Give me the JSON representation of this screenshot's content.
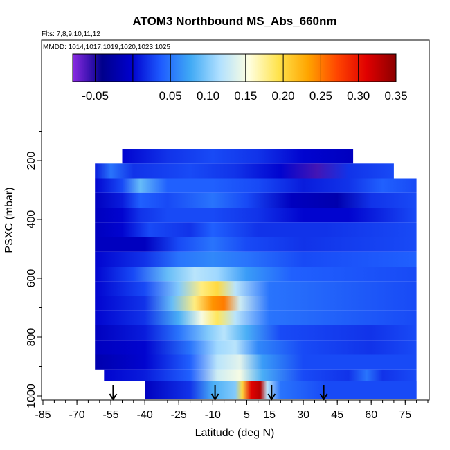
{
  "chart_data": {
    "type": "heatmap",
    "title": "ATOM3 Northbound MS_Abs_660nm",
    "flights_note": "Flts: 7,8,9,10,11,12",
    "mmdd_note": "MMDD: 1014,1017,1019,1020,1023,1025",
    "xlabel": "Latitude (deg N)",
    "ylabel": "PSXC (mbar)",
    "xlim": [
      -85,
      85
    ],
    "ylim": [
      1010,
      60
    ],
    "y_reversed": true,
    "x_ticks": [
      "-85",
      "-70",
      "-55",
      "-40",
      "-25",
      "-10",
      "5",
      "15",
      "30",
      "45",
      "60",
      "75"
    ],
    "y_ticks": [
      "200",
      "400",
      "600",
      "800",
      "1000"
    ],
    "colorbar": {
      "range": [
        -0.08,
        0.35
      ],
      "tick_labels": [
        "-0.05",
        "0.05",
        "0.10",
        "0.15",
        "0.20",
        "0.25",
        "0.30",
        "0.35"
      ],
      "tick_values": [
        -0.05,
        0.05,
        0.1,
        0.15,
        0.2,
        0.25,
        0.3,
        0.35
      ],
      "divider_values": [
        -0.08,
        -0.05,
        0.0,
        0.05,
        0.1,
        0.15,
        0.2,
        0.25,
        0.3,
        0.35
      ],
      "colors": [
        "#8a2be2",
        "#00008b",
        "#0000cd",
        "#1e5bff",
        "#3fa9f5",
        "#b0e0ff",
        "#ffffe0",
        "#ffe34d",
        "#ffa500",
        "#ff4500",
        "#e00000",
        "#8b0000"
      ]
    },
    "profile_arrows_lat": [
      -54,
      -9,
      16,
      39
    ],
    "layers": [
      {
        "p_top": 160,
        "p_bot": 210,
        "lat_min": -50,
        "lat_max": 52,
        "pts": [
          [
            -50,
            0.0
          ],
          [
            -30,
            0.02
          ],
          [
            -10,
            0.03
          ],
          [
            10,
            0.02
          ],
          [
            30,
            0.0
          ],
          [
            52,
            -0.01
          ]
        ]
      },
      {
        "p_top": 210,
        "p_bot": 260,
        "lat_min": -62,
        "lat_max": 70,
        "pts": [
          [
            -62,
            0.01
          ],
          [
            -55,
            0.05
          ],
          [
            -45,
            0.02
          ],
          [
            -20,
            0.03
          ],
          [
            0,
            0.02
          ],
          [
            20,
            0.0
          ],
          [
            36,
            -0.06
          ],
          [
            50,
            0.02
          ],
          [
            70,
            0.03
          ]
        ]
      },
      {
        "p_top": 260,
        "p_bot": 310,
        "lat_min": -62,
        "lat_max": 80,
        "pts": [
          [
            -62,
            0.0
          ],
          [
            -50,
            0.03
          ],
          [
            -42,
            0.09
          ],
          [
            -30,
            0.04
          ],
          [
            -10,
            0.04
          ],
          [
            10,
            0.03
          ],
          [
            30,
            0.01
          ],
          [
            50,
            0.02
          ],
          [
            65,
            0.04
          ],
          [
            80,
            0.03
          ]
        ]
      },
      {
        "p_top": 310,
        "p_bot": 360,
        "lat_min": -62,
        "lat_max": 80,
        "pts": [
          [
            -62,
            -0.01
          ],
          [
            -50,
            0.01
          ],
          [
            -42,
            0.04
          ],
          [
            -30,
            0.03
          ],
          [
            -10,
            0.05
          ],
          [
            5,
            0.03
          ],
          [
            25,
            -0.01
          ],
          [
            45,
            -0.02
          ],
          [
            60,
            0.02
          ],
          [
            80,
            0.03
          ]
        ]
      },
      {
        "p_top": 360,
        "p_bot": 410,
        "lat_min": -62,
        "lat_max": 80,
        "pts": [
          [
            -62,
            -0.01
          ],
          [
            -50,
            0.0
          ],
          [
            -42,
            0.02
          ],
          [
            -30,
            0.03
          ],
          [
            -10,
            0.03
          ],
          [
            10,
            0.02
          ],
          [
            30,
            0.0
          ],
          [
            50,
            0.0
          ],
          [
            70,
            0.02
          ],
          [
            80,
            0.03
          ]
        ]
      },
      {
        "p_top": 410,
        "p_bot": 460,
        "lat_min": -62,
        "lat_max": 80,
        "pts": [
          [
            -62,
            -0.01
          ],
          [
            -50,
            0.0
          ],
          [
            -38,
            0.03
          ],
          [
            -20,
            0.02
          ],
          [
            -10,
            0.04
          ],
          [
            10,
            0.02
          ],
          [
            40,
            0.02
          ],
          [
            80,
            0.03
          ]
        ]
      },
      {
        "p_top": 460,
        "p_bot": 510,
        "lat_min": -62,
        "lat_max": 80,
        "pts": [
          [
            -62,
            -0.01
          ],
          [
            -40,
            -0.01
          ],
          [
            -25,
            0.03
          ],
          [
            -10,
            0.05
          ],
          [
            5,
            0.03
          ],
          [
            30,
            0.02
          ],
          [
            80,
            0.03
          ]
        ]
      },
      {
        "p_top": 510,
        "p_bot": 560,
        "lat_min": -62,
        "lat_max": 80,
        "pts": [
          [
            -62,
            0.0
          ],
          [
            -40,
            0.02
          ],
          [
            -25,
            0.05
          ],
          [
            -10,
            0.06
          ],
          [
            5,
            0.05
          ],
          [
            30,
            0.03
          ],
          [
            80,
            0.04
          ]
        ]
      },
      {
        "p_top": 560,
        "p_bot": 610,
        "lat_min": -62,
        "lat_max": 80,
        "pts": [
          [
            -62,
            0.0
          ],
          [
            -45,
            0.03
          ],
          [
            -30,
            0.09
          ],
          [
            -18,
            0.12
          ],
          [
            -8,
            0.11
          ],
          [
            5,
            0.07
          ],
          [
            25,
            0.04
          ],
          [
            80,
            0.03
          ]
        ]
      },
      {
        "p_top": 610,
        "p_bot": 660,
        "lat_min": -62,
        "lat_max": 80,
        "pts": [
          [
            -62,
            0.0
          ],
          [
            -40,
            0.03
          ],
          [
            -25,
            0.1
          ],
          [
            -15,
            0.18
          ],
          [
            -8,
            0.2
          ],
          [
            0,
            0.12
          ],
          [
            15,
            0.05
          ],
          [
            80,
            0.03
          ]
        ]
      },
      {
        "p_top": 660,
        "p_bot": 710,
        "lat_min": -62,
        "lat_max": 80,
        "pts": [
          [
            -62,
            0.0
          ],
          [
            -40,
            0.02
          ],
          [
            -28,
            0.09
          ],
          [
            -18,
            0.18
          ],
          [
            -10,
            0.24
          ],
          [
            -5,
            0.25
          ],
          [
            2,
            0.13
          ],
          [
            15,
            0.05
          ],
          [
            80,
            0.03
          ]
        ]
      },
      {
        "p_top": 710,
        "p_bot": 760,
        "lat_min": -62,
        "lat_max": 80,
        "pts": [
          [
            -62,
            0.0
          ],
          [
            -40,
            0.02
          ],
          [
            -25,
            0.08
          ],
          [
            -15,
            0.15
          ],
          [
            -8,
            0.19
          ],
          [
            0,
            0.12
          ],
          [
            15,
            0.05
          ],
          [
            80,
            0.03
          ]
        ]
      },
      {
        "p_top": 760,
        "p_bot": 810,
        "lat_min": -62,
        "lat_max": 80,
        "pts": [
          [
            -62,
            -0.01
          ],
          [
            -40,
            0.01
          ],
          [
            -25,
            0.05
          ],
          [
            -12,
            0.1
          ],
          [
            -5,
            0.12
          ],
          [
            5,
            0.08
          ],
          [
            20,
            0.03
          ],
          [
            60,
            0.02
          ],
          [
            80,
            0.03
          ]
        ]
      },
      {
        "p_top": 810,
        "p_bot": 860,
        "lat_min": -62,
        "lat_max": 80,
        "pts": [
          [
            -62,
            -0.01
          ],
          [
            -40,
            0.0
          ],
          [
            -20,
            0.05
          ],
          [
            -8,
            0.11
          ],
          [
            0,
            0.12
          ],
          [
            10,
            0.06
          ],
          [
            30,
            0.03
          ],
          [
            60,
            0.02
          ],
          [
            80,
            0.03
          ]
        ]
      },
      {
        "p_top": 860,
        "p_bot": 910,
        "lat_min": -62,
        "lat_max": 80,
        "pts": [
          [
            -62,
            -0.02
          ],
          [
            -40,
            0.0
          ],
          [
            -20,
            0.04
          ],
          [
            -8,
            0.12
          ],
          [
            2,
            0.14
          ],
          [
            12,
            0.07
          ],
          [
            30,
            0.03
          ],
          [
            80,
            0.03
          ]
        ]
      },
      {
        "p_top": 910,
        "p_bot": 950,
        "lat_min": -58,
        "lat_max": 80,
        "pts": [
          [
            -58,
            0.0
          ],
          [
            -40,
            0.01
          ],
          [
            -20,
            0.04
          ],
          [
            -8,
            0.13
          ],
          [
            2,
            0.15
          ],
          [
            12,
            0.08
          ],
          [
            30,
            0.03
          ],
          [
            50,
            0.02
          ],
          [
            58,
            0.05
          ],
          [
            65,
            0.02
          ],
          [
            80,
            0.03
          ]
        ]
      },
      {
        "p_top": 950,
        "p_bot": 1010,
        "lat_min": -40,
        "lat_max": 80,
        "pts": [
          [
            -40,
            -0.01
          ],
          [
            -20,
            0.02
          ],
          [
            -10,
            0.08
          ],
          [
            0,
            0.1
          ],
          [
            3,
            0.2
          ],
          [
            7,
            0.31
          ],
          [
            11,
            0.33
          ],
          [
            14,
            0.12
          ],
          [
            20,
            0.05
          ],
          [
            40,
            0.03
          ],
          [
            80,
            0.03
          ]
        ]
      }
    ]
  }
}
